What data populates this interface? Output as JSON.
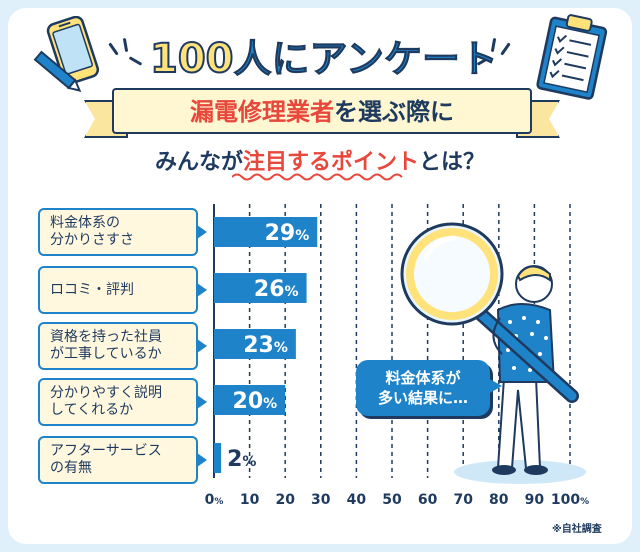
{
  "header": {
    "title_num": "100",
    "title_text": "人にアンケート",
    "subtitle_highlight": "漏電修理業者",
    "subtitle_rest": "を選ぶ際に",
    "subtitle2_pre": "みんなが",
    "subtitle2_highlight": "注目するポイント",
    "subtitle2_post": "とは？"
  },
  "bubble": {
    "line1": "料金体系が",
    "line2": "多い結果に…"
  },
  "footnote": "※自社調査",
  "colors": {
    "bar": "#1f83c9",
    "accent": "#e8473b",
    "navy": "#1e3a5f",
    "label_bg": "#fff8df"
  },
  "chart_data": {
    "type": "bar",
    "orientation": "horizontal",
    "categories": [
      [
        "料金体系の",
        "分かりさすさ"
      ],
      [
        "ロコミ・評判"
      ],
      [
        "資格を持った社員",
        "が工事しているか"
      ],
      [
        "分かりやすく説明",
        "してくれるか"
      ],
      [
        "アフターサービス",
        "の有無"
      ]
    ],
    "values": [
      29,
      26,
      23,
      20,
      2
    ],
    "value_labels": [
      "29",
      "26",
      "23",
      "20",
      "2"
    ],
    "value_unit": "%",
    "xlim": [
      0,
      100
    ],
    "xticks": [
      "0",
      "10",
      "20",
      "30",
      "40",
      "50",
      "60",
      "70",
      "80",
      "90",
      "100"
    ],
    "xtick_first_unit": "%",
    "xtick_last_unit": "%",
    "grid": true
  }
}
